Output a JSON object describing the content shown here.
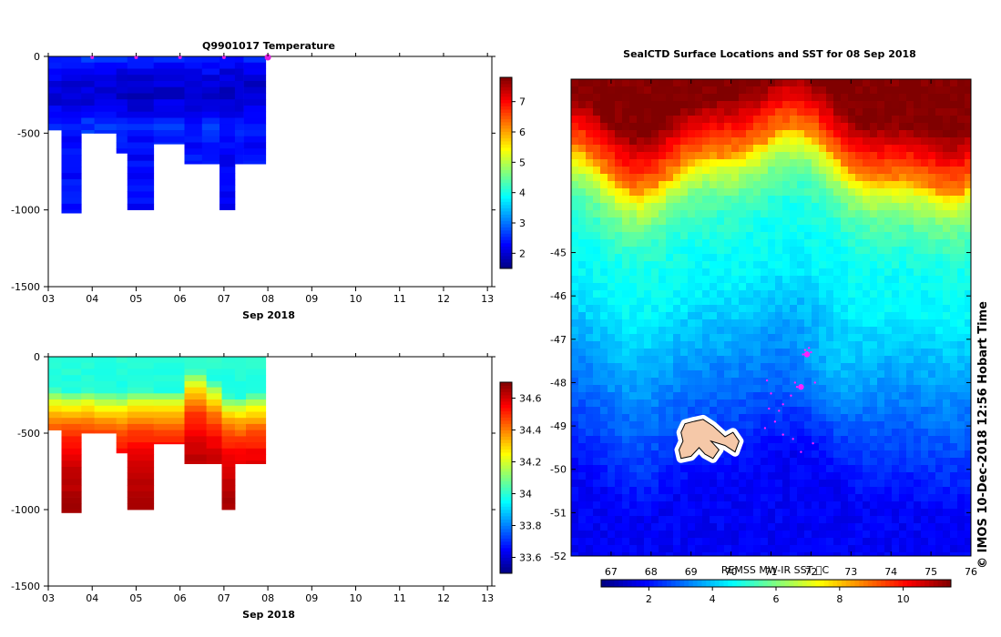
{
  "chart_data": [
    {
      "type": "heatmap",
      "title": "Q9901017  Temperature",
      "xlabel": "Sep 2018",
      "ylabel": "",
      "xlim": [
        3,
        13.1
      ],
      "ylim": [
        -1500,
        0
      ],
      "x_tick_labels": [
        "03",
        "04",
        "05",
        "06",
        "07",
        "08",
        "09",
        "10",
        "11",
        "12",
        "13"
      ],
      "y_ticks": [
        0,
        -500,
        -1000,
        -1500
      ],
      "y_tick_labels": [
        "0",
        "-500",
        "-1000",
        "-1500"
      ],
      "colorbar": {
        "range": [
          1.5,
          7.8
        ],
        "ticks": [
          2,
          3,
          4,
          5,
          6,
          7
        ],
        "labels": [
          "2",
          "3",
          "4",
          "5",
          "6",
          "7"
        ]
      },
      "profile_markers_day": [
        4.0,
        5.0,
        6.0,
        7.0,
        8.0
      ],
      "columns": [
        {
          "x0": 3.0,
          "x1": 3.3,
          "depth": 480,
          "base": 2.6,
          "min": 1.95
        },
        {
          "x0": 3.3,
          "x1": 3.75,
          "depth": 1020,
          "base": 2.5,
          "min": 1.8
        },
        {
          "x0": 3.75,
          "x1": 4.05,
          "depth": 500,
          "base": 2.6,
          "min": 1.9
        },
        {
          "x0": 4.05,
          "x1": 4.55,
          "depth": 500,
          "base": 2.55,
          "min": 1.85
        },
        {
          "x0": 4.55,
          "x1": 4.8,
          "depth": 630,
          "base": 2.5,
          "min": 1.8
        },
        {
          "x0": 4.8,
          "x1": 5.4,
          "depth": 1000,
          "base": 2.45,
          "min": 1.75
        },
        {
          "x0": 5.4,
          "x1": 6.1,
          "depth": 570,
          "base": 2.55,
          "min": 1.85
        },
        {
          "x0": 6.1,
          "x1": 6.5,
          "depth": 700,
          "base": 2.5,
          "min": 1.8
        },
        {
          "x0": 6.5,
          "x1": 6.9,
          "depth": 700,
          "base": 2.55,
          "min": 1.85
        },
        {
          "x0": 6.9,
          "x1": 7.25,
          "depth": 1000,
          "base": 2.45,
          "min": 1.8
        },
        {
          "x0": 7.25,
          "x1": 7.45,
          "depth": 700,
          "base": 2.5,
          "min": 1.85
        },
        {
          "x0": 7.45,
          "x1": 7.95,
          "depth": 700,
          "base": 2.5,
          "min": 1.85
        }
      ]
    },
    {
      "type": "heatmap",
      "title": "",
      "xlabel": "Sep 2018",
      "ylabel": "",
      "xlim": [
        3,
        13.1
      ],
      "ylim": [
        -1500,
        0
      ],
      "x_tick_labels": [
        "03",
        "04",
        "05",
        "06",
        "07",
        "08",
        "09",
        "10",
        "11",
        "12",
        "13"
      ],
      "y_ticks": [
        0,
        -500,
        -1000,
        -1500
      ],
      "y_tick_labels": [
        "0",
        "-500",
        "-1000",
        "-1500"
      ],
      "colorbar": {
        "range": [
          33.5,
          34.7
        ],
        "ticks": [
          33.6,
          33.8,
          34,
          34.2,
          34.4,
          34.6
        ],
        "labels": [
          "33.6",
          "33.8",
          "34",
          "34.2",
          "34.4",
          "34.6"
        ]
      },
      "columns": [
        {
          "x0": 3.0,
          "x1": 3.3,
          "depth": 480,
          "mix": 200
        },
        {
          "x0": 3.3,
          "x1": 3.75,
          "depth": 1020,
          "mix": 210
        },
        {
          "x0": 3.75,
          "x1": 4.05,
          "depth": 500,
          "mix": 200
        },
        {
          "x0": 4.05,
          "x1": 4.55,
          "depth": 500,
          "mix": 220
        },
        {
          "x0": 4.55,
          "x1": 4.8,
          "depth": 630,
          "mix": 230
        },
        {
          "x0": 4.8,
          "x1": 5.4,
          "depth": 1000,
          "mix": 200
        },
        {
          "x0": 5.4,
          "x1": 6.1,
          "depth": 570,
          "mix": 210
        },
        {
          "x0": 6.1,
          "x1": 6.6,
          "depth": 700,
          "mix": 80
        },
        {
          "x0": 6.6,
          "x1": 6.95,
          "depth": 700,
          "mix": 150
        },
        {
          "x0": 6.95,
          "x1": 7.25,
          "depth": 1000,
          "mix": 240
        },
        {
          "x0": 7.25,
          "x1": 7.5,
          "depth": 700,
          "mix": 250
        },
        {
          "x0": 7.5,
          "x1": 7.95,
          "depth": 700,
          "mix": 230
        }
      ]
    },
    {
      "type": "heatmap",
      "title": "SealCTD Surface Locations and SST for 08 Sep 2018",
      "xlim": [
        66.0,
        76.0
      ],
      "ylim": [
        -52.0,
        -41.0
      ],
      "x_ticks": [
        67,
        68,
        69,
        70,
        71,
        72,
        73,
        74,
        75,
        76
      ],
      "x_tick_labels": [
        "67",
        "68",
        "69",
        "70",
        "71",
        "72",
        "73",
        "74",
        "75",
        "76"
      ],
      "y_ticks": [
        -45,
        -46,
        -47,
        -48,
        -49,
        -50,
        -51,
        -52
      ],
      "y_tick_labels": [
        "-45",
        "-46",
        "-47",
        "-48",
        "-49",
        "-50",
        "-51",
        "-52"
      ],
      "colorbar_label": "REMSS MW-IR SST ⃞C",
      "colorbar": {
        "range": [
          0.5,
          11.5
        ],
        "ticks": [
          2,
          4,
          6,
          8,
          10
        ],
        "labels": [
          "2",
          "4",
          "6",
          "8",
          "10"
        ]
      },
      "seal_points_lon_lat": [
        [
          71.85,
          -47.25
        ],
        [
          71.9,
          -47.3
        ],
        [
          71.95,
          -47.2
        ],
        [
          71.8,
          -47.35
        ],
        [
          72.0,
          -47.3
        ],
        [
          71.65,
          -48.1
        ],
        [
          71.5,
          -48.3
        ],
        [
          71.3,
          -48.5
        ],
        [
          71.2,
          -48.65
        ],
        [
          70.9,
          -47.95
        ],
        [
          71.0,
          -48.25
        ],
        [
          70.95,
          -48.6
        ],
        [
          71.1,
          -48.9
        ],
        [
          70.85,
          -49.05
        ],
        [
          71.3,
          -49.2
        ],
        [
          71.55,
          -49.3
        ],
        [
          72.05,
          -49.4
        ],
        [
          71.75,
          -49.6
        ],
        [
          72.1,
          -48.0
        ],
        [
          71.6,
          -48.0
        ]
      ],
      "seal_big_points_lon_lat": [
        [
          71.75,
          -48.1
        ],
        [
          71.9,
          -47.35
        ]
      ],
      "island_outline_lon_lat": [
        [
          68.75,
          -49.15
        ],
        [
          68.8,
          -49.35
        ],
        [
          68.7,
          -49.55
        ],
        [
          68.75,
          -49.75
        ],
        [
          69.0,
          -49.7
        ],
        [
          69.2,
          -49.5
        ],
        [
          69.35,
          -49.65
        ],
        [
          69.55,
          -49.75
        ],
        [
          69.7,
          -49.55
        ],
        [
          69.5,
          -49.35
        ],
        [
          69.85,
          -49.45
        ],
        [
          70.1,
          -49.6
        ],
        [
          70.2,
          -49.35
        ],
        [
          70.05,
          -49.15
        ],
        [
          69.85,
          -49.25
        ],
        [
          69.55,
          -49.0
        ],
        [
          69.3,
          -48.85
        ],
        [
          69.05,
          -48.9
        ],
        [
          68.85,
          -48.95
        ]
      ],
      "credit": "© IMOS 10-Dec-2018 12:56 Hobart Time"
    }
  ]
}
